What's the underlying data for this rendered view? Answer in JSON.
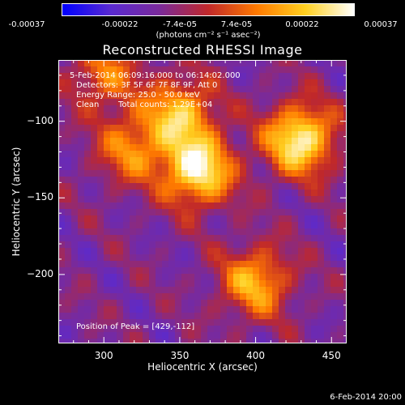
{
  "colorbar": {
    "ticks": [
      "-0.00037",
      "-0.00022",
      "-7.4e-05",
      "7.4e-05",
      "0.00022",
      "0.00037"
    ],
    "unit_label": "(photons cm⁻² s⁻¹ asec⁻²)",
    "colors": [
      "#0000ff",
      "#5a2ad0",
      "#7a2a9a",
      "#c0282a",
      "#ff7a00",
      "#ffd020",
      "#ffffff"
    ]
  },
  "chart_data": {
    "type": "heatmap",
    "title": "Reconstructed RHESSI Image",
    "xlabel": "Heliocentric X (arcsec)",
    "ylabel": "Heliocentric Y (arcsec)",
    "xlim": [
      270,
      460
    ],
    "ylim": [
      -245,
      -60
    ],
    "x_ticks": [
      300,
      350,
      400,
      450
    ],
    "y_ticks": [
      -100,
      -150,
      -200
    ],
    "colorbar_range": [
      -0.00037,
      0.00037
    ],
    "peak": {
      "x": 429,
      "y": -112
    },
    "sources": [
      {
        "x": 362,
        "y": -132,
        "relative_intensity": 1.0
      },
      {
        "x": 429,
        "y": -112,
        "relative_intensity": 1.0
      },
      {
        "x": 350,
        "y": -95,
        "relative_intensity": 0.75
      },
      {
        "x": 400,
        "y": -205,
        "relative_intensity": 0.7
      },
      {
        "x": 318,
        "y": -118,
        "relative_intensity": 0.55
      },
      {
        "x": 300,
        "y": -70,
        "relative_intensity": 0.5
      }
    ]
  },
  "annotations": {
    "time_range": "5-Feb-2014 06:09:16.000 to 06:14:02.000",
    "detectors": "Detectors: 3F 5F 6F 7F 8F 9F, Att 0",
    "energy_range": "Energy Range: 25.0 - 50.0 keV",
    "algorithm": "Clean",
    "total_counts": "Total counts: 1.29E+04",
    "peak_position": "Position of Peak = [429,-112]"
  },
  "footer": {
    "date": "6-Feb-2014 20:00"
  }
}
